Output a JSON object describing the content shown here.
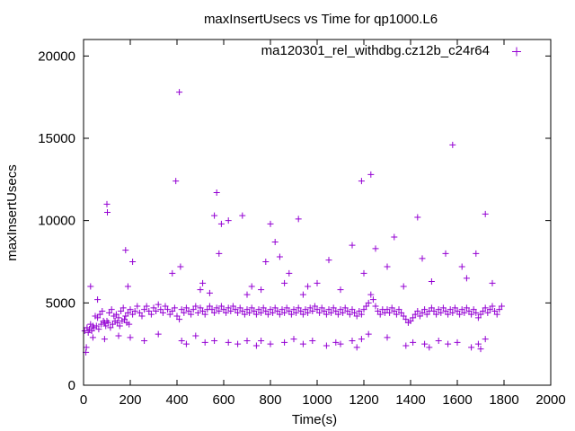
{
  "chart_data": {
    "type": "scatter",
    "title": "maxInsertUsecs vs Time for qp1000.L6",
    "xlabel": "Time(s)",
    "ylabel": "maxInsertUsecs",
    "xlim": [
      0,
      2000
    ],
    "ylim": [
      0,
      21000
    ],
    "x_ticks": [
      "0",
      "200",
      "400",
      "600",
      "800",
      "1000",
      "1200",
      "1400",
      "1600",
      "1800",
      "2000"
    ],
    "y_ticks": [
      "0",
      "5000",
      "10000",
      "15000",
      "20000"
    ],
    "grid": false,
    "legend_position": "top-right",
    "series": [
      {
        "name": "ma120301_rel_withdbg.cz12b_c24r64",
        "color": "#9400d3",
        "marker": "+",
        "points": [
          [
            10,
            2000
          ],
          [
            12,
            2300
          ],
          [
            20,
            3200
          ],
          [
            30,
            3700
          ],
          [
            40,
            3600
          ],
          [
            50,
            4200
          ],
          [
            60,
            4100
          ],
          [
            70,
            4300
          ],
          [
            80,
            4500
          ],
          [
            90,
            3800
          ],
          [
            100,
            3900
          ],
          [
            110,
            4400
          ],
          [
            120,
            4600
          ],
          [
            130,
            4200
          ],
          [
            140,
            4300
          ],
          [
            150,
            4100
          ],
          [
            160,
            4500
          ],
          [
            170,
            4700
          ],
          [
            180,
            4200
          ],
          [
            190,
            4400
          ],
          [
            200,
            4600
          ],
          [
            210,
            4300
          ],
          [
            220,
            4500
          ],
          [
            230,
            4800
          ],
          [
            240,
            4400
          ],
          [
            250,
            4200
          ],
          [
            260,
            4600
          ],
          [
            270,
            4800
          ],
          [
            280,
            4500
          ],
          [
            290,
            4300
          ],
          [
            300,
            4700
          ],
          [
            310,
            4500
          ],
          [
            320,
            4900
          ],
          [
            330,
            4600
          ],
          [
            340,
            4400
          ],
          [
            350,
            4800
          ],
          [
            360,
            4600
          ],
          [
            370,
            4300
          ],
          [
            380,
            4500
          ],
          [
            390,
            4700
          ],
          [
            400,
            4200
          ],
          [
            410,
            4000
          ],
          [
            420,
            4600
          ],
          [
            430,
            4400
          ],
          [
            440,
            4700
          ],
          [
            450,
            4500
          ],
          [
            460,
            4300
          ],
          [
            470,
            4600
          ],
          [
            480,
            4800
          ],
          [
            490,
            4400
          ],
          [
            500,
            4700
          ],
          [
            510,
            4500
          ],
          [
            520,
            4300
          ],
          [
            530,
            4600
          ],
          [
            540,
            4800
          ],
          [
            550,
            4600
          ],
          [
            560,
            4400
          ],
          [
            570,
            4700
          ],
          [
            580,
            4500
          ],
          [
            590,
            4800
          ],
          [
            600,
            4600
          ],
          [
            610,
            4400
          ],
          [
            620,
            4700
          ],
          [
            630,
            4500
          ],
          [
            640,
            4800
          ],
          [
            650,
            4600
          ],
          [
            660,
            4400
          ],
          [
            670,
            4700
          ],
          [
            680,
            4500
          ],
          [
            690,
            4300
          ],
          [
            700,
            4600
          ],
          [
            710,
            4400
          ],
          [
            720,
            4700
          ],
          [
            730,
            4500
          ],
          [
            740,
            4300
          ],
          [
            750,
            4600
          ],
          [
            760,
            4400
          ],
          [
            770,
            4700
          ],
          [
            780,
            4500
          ],
          [
            790,
            4300
          ],
          [
            800,
            4600
          ],
          [
            810,
            4400
          ],
          [
            820,
            4700
          ],
          [
            830,
            4500
          ],
          [
            840,
            4300
          ],
          [
            850,
            4600
          ],
          [
            860,
            4400
          ],
          [
            870,
            4700
          ],
          [
            880,
            4500
          ],
          [
            890,
            4300
          ],
          [
            900,
            4600
          ],
          [
            910,
            4400
          ],
          [
            920,
            4700
          ],
          [
            930,
            4500
          ],
          [
            940,
            4300
          ],
          [
            950,
            4600
          ],
          [
            960,
            4400
          ],
          [
            970,
            4700
          ],
          [
            980,
            4500
          ],
          [
            990,
            4800
          ],
          [
            1000,
            4600
          ],
          [
            1010,
            4400
          ],
          [
            1020,
            4700
          ],
          [
            1030,
            4500
          ],
          [
            1040,
            4300
          ],
          [
            1050,
            4600
          ],
          [
            1060,
            4400
          ],
          [
            1070,
            4700
          ],
          [
            1080,
            4500
          ],
          [
            1090,
            4300
          ],
          [
            1100,
            4600
          ],
          [
            1110,
            4400
          ],
          [
            1120,
            4700
          ],
          [
            1130,
            4500
          ],
          [
            1140,
            4300
          ],
          [
            1150,
            4600
          ],
          [
            1160,
            4400
          ],
          [
            1170,
            4200
          ],
          [
            1180,
            4500
          ],
          [
            1190,
            4300
          ],
          [
            1200,
            4600
          ],
          [
            1210,
            4800
          ],
          [
            1220,
            5000
          ],
          [
            1230,
            5500
          ],
          [
            1240,
            5200
          ],
          [
            1250,
            4800
          ],
          [
            1260,
            4500
          ],
          [
            1270,
            4300
          ],
          [
            1280,
            4600
          ],
          [
            1290,
            4400
          ],
          [
            1300,
            4600
          ],
          [
            1310,
            4400
          ],
          [
            1320,
            4700
          ],
          [
            1330,
            4500
          ],
          [
            1340,
            4300
          ],
          [
            1350,
            4600
          ],
          [
            1360,
            4400
          ],
          [
            1370,
            4200
          ],
          [
            1380,
            4000
          ],
          [
            1390,
            3800
          ],
          [
            1400,
            3900
          ],
          [
            1410,
            4100
          ],
          [
            1420,
            4300
          ],
          [
            1430,
            4500
          ],
          [
            1440,
            4200
          ],
          [
            1450,
            4400
          ],
          [
            1460,
            4600
          ],
          [
            1470,
            4300
          ],
          [
            1480,
            4500
          ],
          [
            1490,
            4700
          ],
          [
            1500,
            4500
          ],
          [
            1510,
            4300
          ],
          [
            1520,
            4600
          ],
          [
            1530,
            4400
          ],
          [
            1540,
            4700
          ],
          [
            1550,
            4500
          ],
          [
            1560,
            4300
          ],
          [
            1570,
            4600
          ],
          [
            1580,
            4400
          ],
          [
            1590,
            4700
          ],
          [
            1600,
            4500
          ],
          [
            1610,
            4300
          ],
          [
            1620,
            4600
          ],
          [
            1630,
            4400
          ],
          [
            1640,
            4700
          ],
          [
            1650,
            4500
          ],
          [
            1660,
            4300
          ],
          [
            1670,
            4600
          ],
          [
            1680,
            4400
          ],
          [
            1690,
            4100
          ],
          [
            1700,
            4300
          ],
          [
            1710,
            4500
          ],
          [
            1720,
            4700
          ],
          [
            1730,
            4400
          ],
          [
            1740,
            4600
          ],
          [
            1750,
            4800
          ],
          [
            1760,
            4500
          ],
          [
            1770,
            4300
          ],
          [
            1780,
            4600
          ],
          [
            1790,
            4800
          ],
          [
            5,
            3300
          ],
          [
            15,
            3500
          ],
          [
            25,
            3400
          ],
          [
            35,
            3300
          ],
          [
            45,
            3500
          ],
          [
            55,
            3600
          ],
          [
            65,
            3400
          ],
          [
            75,
            3700
          ],
          [
            85,
            3900
          ],
          [
            95,
            3600
          ],
          [
            105,
            3800
          ],
          [
            115,
            3500
          ],
          [
            125,
            3700
          ],
          [
            135,
            3900
          ],
          [
            145,
            3800
          ],
          [
            155,
            3600
          ],
          [
            165,
            3900
          ],
          [
            175,
            4000
          ],
          [
            185,
            3800
          ],
          [
            195,
            3700
          ],
          [
            30,
            6000
          ],
          [
            60,
            5200
          ],
          [
            100,
            11000
          ],
          [
            102,
            10500
          ],
          [
            180,
            8200
          ],
          [
            190,
            6000
          ],
          [
            210,
            7500
          ],
          [
            380,
            6800
          ],
          [
            395,
            12400
          ],
          [
            410,
            17800
          ],
          [
            415,
            7200
          ],
          [
            500,
            5800
          ],
          [
            510,
            6200
          ],
          [
            540,
            5600
          ],
          [
            560,
            10300
          ],
          [
            570,
            11700
          ],
          [
            580,
            8000
          ],
          [
            590,
            9800
          ],
          [
            620,
            10000
          ],
          [
            680,
            10300
          ],
          [
            700,
            5500
          ],
          [
            720,
            6000
          ],
          [
            760,
            5800
          ],
          [
            780,
            7500
          ],
          [
            800,
            9800
          ],
          [
            820,
            8700
          ],
          [
            840,
            7800
          ],
          [
            860,
            6200
          ],
          [
            880,
            6800
          ],
          [
            920,
            10100
          ],
          [
            940,
            5500
          ],
          [
            960,
            6000
          ],
          [
            1000,
            6200
          ],
          [
            1050,
            7600
          ],
          [
            1100,
            5800
          ],
          [
            1150,
            8500
          ],
          [
            1190,
            12400
          ],
          [
            1200,
            6800
          ],
          [
            1230,
            12800
          ],
          [
            1250,
            8300
          ],
          [
            1300,
            7200
          ],
          [
            1330,
            9000
          ],
          [
            1370,
            6000
          ],
          [
            1430,
            10200
          ],
          [
            1450,
            7700
          ],
          [
            1490,
            6300
          ],
          [
            1550,
            8000
          ],
          [
            1580,
            14600
          ],
          [
            1620,
            7200
          ],
          [
            1640,
            6500
          ],
          [
            1680,
            8000
          ],
          [
            1720,
            10400
          ],
          [
            1750,
            6200
          ],
          [
            40,
            2900
          ],
          [
            90,
            2800
          ],
          [
            150,
            3000
          ],
          [
            200,
            2900
          ],
          [
            260,
            2700
          ],
          [
            320,
            3100
          ],
          [
            420,
            2700
          ],
          [
            440,
            2500
          ],
          [
            480,
            3000
          ],
          [
            520,
            2600
          ],
          [
            560,
            2700
          ],
          [
            620,
            2600
          ],
          [
            660,
            2500
          ],
          [
            700,
            2700
          ],
          [
            740,
            2400
          ],
          [
            760,
            2700
          ],
          [
            800,
            2500
          ],
          [
            860,
            2600
          ],
          [
            900,
            2800
          ],
          [
            940,
            2500
          ],
          [
            980,
            2700
          ],
          [
            1040,
            2400
          ],
          [
            1080,
            2600
          ],
          [
            1100,
            2500
          ],
          [
            1150,
            2700
          ],
          [
            1170,
            2300
          ],
          [
            1190,
            2800
          ],
          [
            1220,
            3100
          ],
          [
            1300,
            2900
          ],
          [
            1380,
            2400
          ],
          [
            1410,
            2600
          ],
          [
            1460,
            2500
          ],
          [
            1480,
            2300
          ],
          [
            1520,
            2700
          ],
          [
            1560,
            2500
          ],
          [
            1600,
            2600
          ],
          [
            1660,
            2300
          ],
          [
            1690,
            2500
          ],
          [
            1700,
            2200
          ],
          [
            1720,
            2800
          ]
        ]
      }
    ]
  }
}
